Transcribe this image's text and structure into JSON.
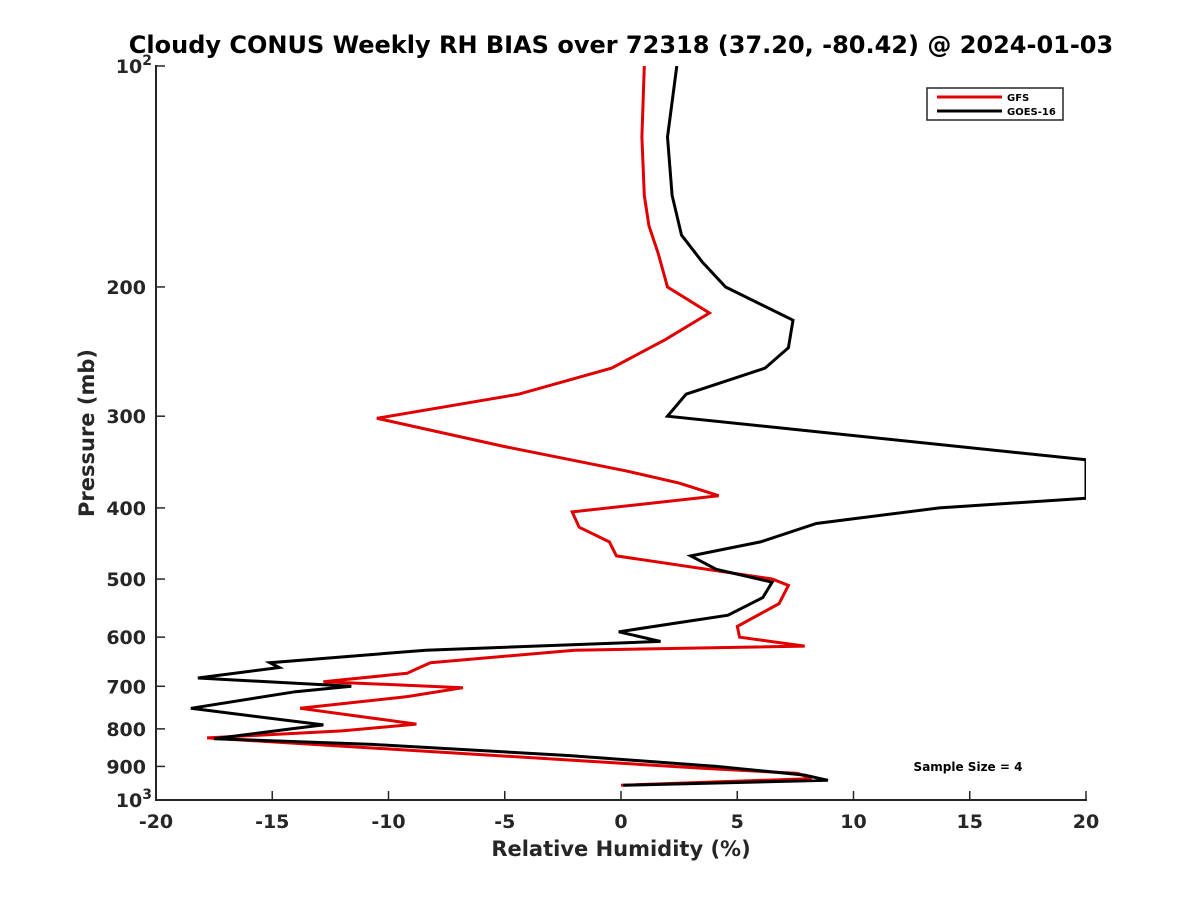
{
  "chart_data": {
    "type": "line",
    "title": "Cloudy CONUS Weekly RH BIAS over 72318 (37.20, -80.42) @ 2024-01-03",
    "xlabel": "Relative Humidity (%)",
    "ylabel": "Pressure (mb)",
    "xlim": [
      -20,
      20
    ],
    "ylim": [
      1000,
      100
    ],
    "yscale": "log",
    "x_ticks": [
      -20,
      -15,
      -10,
      -5,
      0,
      5,
      10,
      15,
      20
    ],
    "y_ticks": [
      {
        "value": 100,
        "base": "10",
        "exp": "2"
      },
      {
        "value": 200,
        "label": "200"
      },
      {
        "value": 300,
        "label": "300"
      },
      {
        "value": 400,
        "label": "400"
      },
      {
        "value": 500,
        "label": "500"
      },
      {
        "value": 600,
        "label": "600"
      },
      {
        "value": 700,
        "label": "700"
      },
      {
        "value": 800,
        "label": "800"
      },
      {
        "value": 900,
        "label": "900"
      },
      {
        "value": 1000,
        "base": "10",
        "exp": "3"
      }
    ],
    "legend_position": "top-right",
    "annotation": "Sample Size = 4",
    "series": [
      {
        "name": "GFS",
        "color": "#e00000",
        "points": [
          [
            1.0,
            100
          ],
          [
            0.9,
            125
          ],
          [
            1.0,
            150
          ],
          [
            1.2,
            165
          ],
          [
            1.6,
            180
          ],
          [
            2.0,
            200
          ],
          [
            3.8,
            217
          ],
          [
            1.9,
            236
          ],
          [
            -0.4,
            258
          ],
          [
            -4.4,
            280
          ],
          [
            -10.5,
            302
          ],
          [
            -5.0,
            330
          ],
          [
            0.2,
            356
          ],
          [
            2.5,
            370
          ],
          [
            4.2,
            385
          ],
          [
            -2.1,
            405
          ],
          [
            -1.8,
            425
          ],
          [
            -0.5,
            445
          ],
          [
            -0.2,
            465
          ],
          [
            6.5,
            500
          ],
          [
            7.2,
            510
          ],
          [
            6.8,
            540
          ],
          [
            5.0,
            580
          ],
          [
            5.1,
            600
          ],
          [
            7.9,
            617
          ],
          [
            -2.0,
            625
          ],
          [
            -8.2,
            650
          ],
          [
            -8.9,
            665
          ],
          [
            -9.2,
            672
          ],
          [
            -12.8,
            690
          ],
          [
            -6.8,
            703
          ],
          [
            -9.2,
            723
          ],
          [
            -13.8,
            750
          ],
          [
            -8.8,
            788
          ],
          [
            -12.0,
            805
          ],
          [
            -17.8,
            823
          ],
          [
            3.5,
            905
          ],
          [
            7.6,
            920
          ],
          [
            8.2,
            935
          ],
          [
            0.0,
            955
          ]
        ]
      },
      {
        "name": "GOES-16",
        "color": "#000000",
        "points": [
          [
            2.4,
            100
          ],
          [
            2.0,
            125
          ],
          [
            2.2,
            150
          ],
          [
            2.6,
            170
          ],
          [
            3.5,
            185
          ],
          [
            4.5,
            200
          ],
          [
            7.4,
            222
          ],
          [
            7.2,
            242
          ],
          [
            6.2,
            258
          ],
          [
            2.8,
            280
          ],
          [
            2.0,
            300
          ],
          [
            20.0,
            344
          ],
          [
            20.0,
            388
          ],
          [
            13.7,
            400
          ],
          [
            8.4,
            420
          ],
          [
            6.0,
            445
          ],
          [
            3.0,
            465
          ],
          [
            4.1,
            485
          ],
          [
            6.5,
            505
          ],
          [
            6.1,
            530
          ],
          [
            4.6,
            560
          ],
          [
            -0.1,
            590
          ],
          [
            1.7,
            608
          ],
          [
            -8.4,
            625
          ],
          [
            -15.1,
            650
          ],
          [
            -14.7,
            660
          ],
          [
            -18.2,
            682
          ],
          [
            -11.6,
            700
          ],
          [
            -14.0,
            712
          ],
          [
            -18.5,
            750
          ],
          [
            -12.8,
            790
          ],
          [
            -14.2,
            800
          ],
          [
            -17.5,
            825
          ],
          [
            -10.7,
            840
          ],
          [
            -2.2,
            870
          ],
          [
            4.1,
            900
          ],
          [
            7.9,
            925
          ],
          [
            8.9,
            940
          ],
          [
            0.1,
            955
          ]
        ]
      }
    ]
  }
}
